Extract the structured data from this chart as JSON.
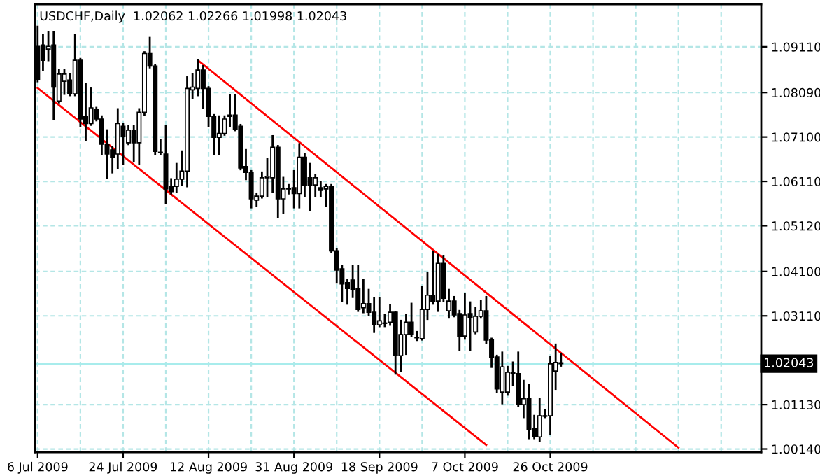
{
  "chart_data": {
    "type": "candlestick",
    "title": "USDCHF,Daily  1.02062 1.02266 1.01998 1.02043",
    "categories": [
      "6 Jul 2009",
      null,
      null,
      null,
      null,
      null,
      null,
      null,
      null,
      null,
      null,
      null,
      null,
      null,
      null,
      null,
      "24 Jul 2009",
      null,
      null,
      null,
      null,
      null,
      null,
      null,
      null,
      null,
      null,
      null,
      null,
      null,
      null,
      null,
      "12 Aug 2009",
      null,
      null,
      null,
      null,
      null,
      null,
      null,
      null,
      null,
      null,
      null,
      null,
      null,
      null,
      null,
      "31 Aug 2009",
      null,
      null,
      null,
      null,
      null,
      null,
      null,
      null,
      null,
      null,
      null,
      null,
      null,
      null,
      null,
      "18 Sep 2009",
      null,
      null,
      null,
      null,
      null,
      null,
      null,
      null,
      null,
      null,
      null,
      null,
      null,
      null,
      null,
      "7 Oct 2009",
      null,
      null,
      null,
      null,
      null,
      null,
      null,
      null,
      null,
      null,
      null,
      null,
      null,
      null,
      null,
      "26 Oct 2009",
      null,
      null,
      null,
      null,
      null,
      null,
      null,
      null,
      null,
      null,
      null,
      null,
      null,
      null,
      null,
      null,
      null,
      null,
      null,
      null,
      null,
      null,
      null,
      null,
      null,
      null,
      null,
      null,
      null,
      null,
      null,
      null,
      null,
      null,
      null,
      null,
      null,
      null,
      null
    ],
    "series": [
      {
        "type": "candlestick",
        "color": "#000000",
        "ohlc": [
          [
            1.0912,
            1.0956,
            1.0834,
            1.0837
          ],
          [
            1.0915,
            1.0937,
            1.0859,
            1.0881
          ],
          [
            1.0906,
            1.0943,
            1.0881,
            1.0912
          ],
          [
            1.0915,
            1.0943,
            1.075,
            1.0821
          ],
          [
            1.079,
            1.0859,
            1.0787,
            1.085
          ],
          [
            1.0834,
            1.0859,
            1.0806,
            1.085
          ],
          [
            1.0837,
            1.085,
            1.0803,
            1.0806
          ],
          [
            1.0806,
            1.0937,
            1.0803,
            1.0881
          ],
          [
            1.0881,
            1.0884,
            1.0734,
            1.075
          ],
          [
            1.0756,
            1.0828,
            1.0703,
            1.074
          ],
          [
            1.074,
            1.0818,
            1.0737,
            1.0775
          ],
          [
            1.0772,
            1.0775,
            1.0747,
            1.075
          ],
          [
            1.075,
            1.0756,
            1.0672,
            1.0694
          ],
          [
            1.0694,
            1.0725,
            1.0619,
            1.0672
          ],
          [
            1.0681,
            1.0687,
            1.0631,
            1.0665
          ],
          [
            1.0672,
            1.0772,
            1.0641,
            1.074
          ],
          [
            1.0734,
            1.074,
            1.065,
            1.0712
          ],
          [
            1.0697,
            1.0734,
            1.0694,
            1.0725
          ],
          [
            1.0725,
            1.0734,
            1.0656,
            1.0697
          ],
          [
            1.0697,
            1.0772,
            1.065,
            1.0765
          ],
          [
            1.0765,
            1.0899,
            1.0759,
            1.0896
          ],
          [
            1.0896,
            1.0931,
            1.0865,
            1.0868
          ],
          [
            1.0868,
            1.0871,
            1.0672,
            1.0678
          ],
          [
            1.0676,
            1.0703,
            1.0672,
            1.0675
          ],
          [
            1.0672,
            1.0734,
            1.0562,
            1.0594
          ],
          [
            1.06,
            1.0616,
            1.0584,
            1.0588
          ],
          [
            1.06,
            1.065,
            1.0588,
            1.0616
          ],
          [
            1.0616,
            1.0678,
            1.0603,
            1.0634
          ],
          [
            1.0634,
            1.0843,
            1.06,
            1.0818
          ],
          [
            1.0815,
            1.085,
            1.0797,
            1.0821
          ],
          [
            1.0818,
            1.0881,
            1.0803,
            1.0859
          ],
          [
            1.0859,
            1.0868,
            1.0775,
            1.0818
          ],
          [
            1.0818,
            1.0821,
            1.0734,
            1.0756
          ],
          [
            1.0756,
            1.0759,
            1.0672,
            1.0709
          ],
          [
            1.0709,
            1.0756,
            1.0672,
            1.0718
          ],
          [
            1.0718,
            1.0756,
            1.0715,
            1.075
          ],
          [
            1.0756,
            1.0803,
            1.0734,
            1.0759
          ],
          [
            1.0759,
            1.0803,
            1.0725,
            1.0728
          ],
          [
            1.0734,
            1.0737,
            1.0638,
            1.0641
          ],
          [
            1.0644,
            1.0681,
            1.0616,
            1.0631
          ],
          [
            1.0631,
            1.0634,
            1.0553,
            1.0572
          ],
          [
            1.0569,
            1.0584,
            1.0556,
            1.0578
          ],
          [
            1.0578,
            1.0631,
            1.0575,
            1.0619
          ],
          [
            1.0619,
            1.0662,
            1.0578,
            1.0622
          ],
          [
            1.0619,
            1.0712,
            1.0588,
            1.0687
          ],
          [
            1.0687,
            1.069,
            1.0531,
            1.0572
          ],
          [
            1.0572,
            1.0619,
            1.0541,
            1.0594
          ],
          [
            1.0594,
            1.0603,
            1.0584,
            1.0595
          ],
          [
            1.0597,
            1.0634,
            1.0553,
            1.0584
          ],
          [
            1.0584,
            1.0694,
            1.0553,
            1.0665
          ],
          [
            1.0665,
            1.0672,
            1.0578,
            1.0603
          ],
          [
            1.0619,
            1.065,
            1.0547,
            1.0603
          ],
          [
            1.0603,
            1.0625,
            1.0578,
            1.0619
          ],
          [
            1.0597,
            1.0609,
            1.0578,
            1.0591
          ],
          [
            1.0594,
            1.0603,
            1.0556,
            1.06
          ],
          [
            1.06,
            1.0603,
            1.0453,
            1.0456
          ],
          [
            1.0456,
            1.046,
            1.0385,
            1.0413
          ],
          [
            1.0416,
            1.0422,
            1.0344,
            1.0382
          ],
          [
            1.0385,
            1.0391,
            1.0338,
            1.0372
          ],
          [
            1.0391,
            1.0422,
            1.0353,
            1.0369
          ],
          [
            1.0372,
            1.0422,
            1.0322,
            1.0325
          ],
          [
            1.0329,
            1.0391,
            1.0319,
            1.0338
          ],
          [
            1.0338,
            1.0369,
            1.0313,
            1.0319
          ],
          [
            1.0319,
            1.035,
            1.0275,
            1.0291
          ],
          [
            1.0291,
            1.035,
            1.0288,
            1.03
          ],
          [
            1.0294,
            1.0313,
            1.0288,
            1.0295
          ],
          [
            1.0297,
            1.0335,
            1.0291,
            1.0319
          ],
          [
            1.0319,
            1.032,
            1.0182,
            1.0222
          ],
          [
            1.0222,
            1.03,
            1.0188,
            1.0269
          ],
          [
            1.0269,
            1.0313,
            1.0226,
            1.0297
          ],
          [
            1.0297,
            1.0338,
            1.0266,
            1.0269
          ],
          [
            1.0263,
            1.0275,
            1.0257,
            1.0262
          ],
          [
            1.026,
            1.0375,
            1.0258,
            1.0325
          ],
          [
            1.0325,
            1.0406,
            1.0304,
            1.0357
          ],
          [
            1.0357,
            1.0453,
            1.0338,
            1.0344
          ],
          [
            1.0344,
            1.0447,
            1.0322,
            1.0428
          ],
          [
            1.0428,
            1.0444,
            1.0344,
            1.035
          ],
          [
            1.0322,
            1.0369,
            1.0307,
            1.0344
          ],
          [
            1.0344,
            1.0353,
            1.031,
            1.0313
          ],
          [
            1.0316,
            1.0322,
            1.0235,
            1.0266
          ],
          [
            1.0266,
            1.036,
            1.026,
            1.0313
          ],
          [
            1.0316,
            1.0341,
            1.0235,
            1.0307
          ],
          [
            1.0275,
            1.0329,
            1.0272,
            1.031
          ],
          [
            1.031,
            1.0344,
            1.0307,
            1.0322
          ],
          [
            1.0322,
            1.0353,
            1.0251,
            1.0257
          ],
          [
            1.0257,
            1.026,
            1.0197,
            1.0219
          ],
          [
            1.0219,
            1.0222,
            1.0141,
            1.0148
          ],
          [
            1.0141,
            1.0229,
            1.0116,
            1.0197
          ],
          [
            1.0141,
            1.0197,
            1.0135,
            1.0185
          ],
          [
            1.0185,
            1.0207,
            1.0157,
            1.0182
          ],
          [
            1.0182,
            1.0229,
            1.011,
            1.0113
          ],
          [
            1.0113,
            1.0166,
            1.0085,
            1.0126
          ],
          [
            1.0126,
            1.0157,
            1.0038,
            1.0057
          ],
          [
            1.006,
            1.0088,
            1.0038,
            1.0041
          ],
          [
            1.0041,
            1.0126,
            1.0032,
            1.0088
          ],
          [
            1.0087,
            1.0101,
            1.0085,
            1.0088
          ],
          [
            1.0088,
            1.0219,
            1.0048,
            1.0204
          ],
          [
            1.0188,
            1.0247,
            1.0148,
            1.0207
          ],
          [
            1.02062,
            1.02266,
            1.01998,
            1.02043
          ],
          null,
          null,
          null,
          null,
          null,
          null,
          null,
          null,
          null,
          null,
          null,
          null,
          null,
          null,
          null,
          null,
          null,
          null,
          null,
          null,
          null,
          null,
          null,
          null,
          null,
          null,
          null,
          null,
          null,
          null,
          null,
          null,
          null,
          null,
          null,
          null,
          null
        ]
      },
      {
        "type": "line",
        "color": "#ff0000",
        "values": [
          1.0819,
          null,
          null,
          null,
          null,
          null,
          null,
          null,
          null,
          null,
          null,
          null,
          null,
          null,
          null,
          null,
          null,
          null,
          null,
          null,
          null,
          null,
          null,
          null,
          null,
          null,
          null,
          null,
          null,
          null,
          null,
          null,
          null,
          null,
          null,
          null,
          null,
          null,
          null,
          null,
          null,
          null,
          null,
          null,
          null,
          null,
          null,
          null,
          null,
          null,
          null,
          null,
          null,
          null,
          null,
          null,
          null,
          null,
          null,
          null,
          null,
          null,
          null,
          null,
          null,
          null,
          null,
          null,
          null,
          null,
          null,
          null,
          null,
          null,
          null,
          null,
          null,
          null,
          null,
          null,
          null,
          null,
          null,
          null,
          1.0023,
          null,
          null,
          null,
          null,
          null,
          null,
          null,
          null,
          null,
          null,
          null,
          null,
          null,
          null,
          null,
          null,
          null,
          null,
          null,
          null,
          null,
          null,
          null,
          null,
          null,
          null,
          null,
          null,
          null,
          null,
          null,
          null,
          null,
          null,
          null,
          null,
          null,
          null,
          null,
          null,
          null,
          null,
          null,
          null,
          null,
          null,
          null,
          null,
          null,
          null,
          null
        ]
      },
      {
        "type": "line",
        "color": "#ff0000",
        "values": [
          null,
          null,
          null,
          null,
          null,
          null,
          null,
          null,
          null,
          null,
          null,
          null,
          null,
          null,
          null,
          null,
          null,
          null,
          null,
          null,
          null,
          null,
          null,
          null,
          null,
          null,
          null,
          null,
          null,
          null,
          1.0881,
          null,
          null,
          null,
          null,
          null,
          null,
          null,
          null,
          null,
          null,
          null,
          null,
          null,
          null,
          null,
          null,
          null,
          null,
          null,
          null,
          null,
          null,
          null,
          null,
          null,
          null,
          null,
          null,
          null,
          null,
          null,
          null,
          null,
          null,
          null,
          null,
          null,
          null,
          null,
          null,
          null,
          null,
          null,
          null,
          null,
          null,
          null,
          null,
          null,
          null,
          null,
          null,
          null,
          null,
          null,
          null,
          null,
          null,
          null,
          null,
          null,
          null,
          null,
          null,
          null,
          null,
          null,
          null,
          null,
          null,
          null,
          null,
          null,
          null,
          null,
          null,
          null,
          null,
          null,
          null,
          null,
          null,
          null,
          null,
          null,
          null,
          null,
          null,
          null,
          1.0017,
          null,
          null,
          null,
          null,
          null,
          null,
          null,
          null,
          null,
          null,
          null,
          null,
          null,
          null,
          null
        ]
      }
    ],
    "ylim": [
      1.0007,
      1.1006
    ],
    "yticks": [
      {
        "value": 1.0014,
        "label": "1.00140"
      },
      {
        "value": 1.0113,
        "label": "1.01130"
      },
      {
        "value": 1.0311,
        "label": "1.03110"
      },
      {
        "value": 1.041,
        "label": "1.04100"
      },
      {
        "value": 1.0512,
        "label": "1.05120"
      },
      {
        "value": 1.0611,
        "label": "1.06110"
      },
      {
        "value": 1.071,
        "label": "1.07100"
      },
      {
        "value": 1.0809,
        "label": "1.08090"
      },
      {
        "value": 1.0911,
        "label": "1.09110"
      }
    ],
    "ref_lines": [
      {
        "axis": "y",
        "value": 1.02043,
        "label": "1.02043",
        "color": "#a8ecec"
      }
    ],
    "grid": true
  }
}
